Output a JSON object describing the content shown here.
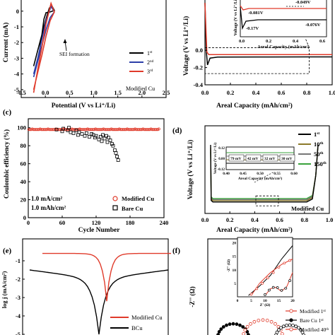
{
  "colors": {
    "black": "#000000",
    "red": "#e03a2a",
    "blue": "#2b3ea8",
    "green": "#39a33c",
    "olive": "#8c7a2a",
    "grey": "#777777"
  },
  "chart_data": [
    {
      "panel": "a",
      "type": "line",
      "panel_label": "",
      "xlabel": "Potential (V vs Li⁺/Li)",
      "ylabel": "Current (mA)",
      "xlim": [
        -0.5,
        3.0
      ],
      "xticks": [
        "-0.5",
        "0.0",
        "0.5",
        "1.0",
        "1.5",
        "2.0",
        "2.5"
      ],
      "yticks": [
        "0",
        "-1",
        "-2",
        "-3",
        "-4",
        "-5"
      ],
      "ylim": [
        -5.5,
        0.8
      ],
      "annotation": "SEI formation",
      "footer": "Modified Cu",
      "legend_position": "lower-right",
      "series": [
        {
          "name": "1st",
          "name_base": "1",
          "name_sup": "st",
          "color": "black",
          "points": [
            [
              -0.05,
              -2.4
            ],
            [
              0.0,
              -1.5
            ],
            [
              0.05,
              -0.5
            ],
            [
              0.1,
              -0.1
            ],
            [
              0.2,
              -0.05
            ],
            [
              0.3,
              0.05
            ],
            [
              0.25,
              0.3
            ],
            [
              0.18,
              0.2
            ],
            [
              0.1,
              -0.5
            ],
            [
              0.0,
              -1.5
            ],
            [
              -0.1,
              -2.5
            ],
            [
              -0.2,
              -3.5
            ]
          ]
        },
        {
          "name": "2nd",
          "name_base": "2",
          "name_sup": "nd",
          "color": "blue",
          "points": [
            [
              -0.2,
              -4.2
            ],
            [
              -0.1,
              -3.2
            ],
            [
              0.0,
              -2.2
            ],
            [
              0.1,
              -1.2
            ],
            [
              0.2,
              -0.4
            ],
            [
              0.3,
              -0.05
            ],
            [
              0.22,
              0.3
            ],
            [
              0.1,
              -0.6
            ],
            [
              0.0,
              -1.8
            ],
            [
              -0.1,
              -3.0
            ],
            [
              -0.2,
              -4.0
            ]
          ]
        },
        {
          "name": "3rd",
          "name_base": "3",
          "name_sup": "rd",
          "color": "red",
          "points": [
            [
              -0.2,
              -5.0
            ],
            [
              -0.1,
              -3.9
            ],
            [
              0.0,
              -2.8
            ],
            [
              0.1,
              -1.6
            ],
            [
              0.2,
              -0.6
            ],
            [
              0.3,
              -0.05
            ],
            [
              0.22,
              0.5
            ],
            [
              0.1,
              -0.8
            ],
            [
              0.0,
              -2.3
            ],
            [
              -0.1,
              -3.7
            ],
            [
              -0.2,
              -5.2
            ]
          ]
        }
      ]
    },
    {
      "panel": "b",
      "type": "line",
      "xlabel": "Areal Capacity (mAh/cm²)",
      "ylabel": "Voltage (V vs Li⁺/Li)",
      "xlim": [
        0.0,
        1.0
      ],
      "xticks": [
        "0.0",
        "0.2",
        "0.4",
        "0.6",
        "0.8",
        "1.0"
      ],
      "ylim": [
        -0.4,
        0.6
      ],
      "yticks": [
        "0.0",
        "-0.2",
        "-0.4"
      ],
      "series": [
        {
          "name": "",
          "color": "black",
          "points": [
            [
              0.0,
              0.55
            ],
            [
              0.01,
              0.0
            ],
            [
              0.02,
              -0.17
            ],
            [
              0.04,
              -0.09
            ],
            [
              0.1,
              -0.078
            ],
            [
              0.4,
              -0.077
            ],
            [
              0.8,
              -0.076
            ],
            [
              1.0,
              -0.076
            ]
          ]
        },
        {
          "name": "",
          "color": "red",
          "points": [
            [
              0.0,
              0.55
            ],
            [
              0.015,
              -0.02
            ],
            [
              0.03,
              -0.05
            ],
            [
              0.1,
              -0.05
            ],
            [
              0.4,
              -0.05
            ],
            [
              0.8,
              -0.049
            ],
            [
              1.0,
              -0.049
            ]
          ]
        }
      ],
      "inset": {
        "xlabel": "Areal Capacity (mAh/cm²)",
        "ylabel": "Voltage (V vs Li⁺/Li)",
        "xticks": [
          "0.0",
          "0.2",
          "0.4",
          "0.6"
        ],
        "annotations": [
          "-0.049V",
          "-0.081V",
          "-0.17V",
          "-0.076V"
        ]
      }
    },
    {
      "panel": "c",
      "type": "scatter",
      "panel_label": "(c)",
      "xlabel": "Cycle Number",
      "ylabel": "Coulombic efficiency (%)",
      "xlim": [
        0,
        240
      ],
      "xticks": [
        "0",
        "60",
        "120",
        "180",
        "240"
      ],
      "ylim": [
        0,
        110
      ],
      "yticks": [
        "0",
        "20",
        "40",
        "60",
        "80",
        "100"
      ],
      "annotations": [
        "1.0 mA/cm²",
        "1.0 mAh/cm²"
      ],
      "legend_position": "lower-right",
      "series": [
        {
          "name": "Modified Cu",
          "color": "red",
          "marker": "circle",
          "value": 98,
          "x_range": [
            1,
            232
          ]
        },
        {
          "name": "Bare Cu",
          "color": "black",
          "marker": "square",
          "points": [
            [
              50,
              98
            ],
            [
              60,
              96
            ],
            [
              62,
              99
            ],
            [
              70,
              97
            ],
            [
              72,
              100
            ],
            [
              75,
              95
            ],
            [
              80,
              94
            ],
            [
              85,
              97
            ],
            [
              88,
              92
            ],
            [
              90,
              95
            ],
            [
              95,
              93
            ],
            [
              100,
              91
            ],
            [
              103,
              94
            ],
            [
              108,
              90
            ],
            [
              112,
              93
            ],
            [
              115,
              92
            ],
            [
              118,
              89
            ],
            [
              120,
              91
            ],
            [
              125,
              87
            ],
            [
              128,
              90
            ],
            [
              130,
              85
            ],
            [
              132,
              92
            ],
            [
              135,
              88
            ],
            [
              138,
              91
            ],
            [
              140,
              84
            ],
            [
              142,
              89
            ],
            [
              145,
              86
            ],
            [
              148,
              82
            ],
            [
              150,
              80
            ],
            [
              153,
              75
            ],
            [
              155,
              72
            ],
            [
              157,
              68
            ],
            [
              159,
              64
            ]
          ]
        }
      ]
    },
    {
      "panel": "d",
      "type": "line",
      "panel_label": "(d)",
      "xlabel": "Areal Capacity (mAh/cm²)",
      "ylabel": "Voltage (V vs Li⁺/Li)",
      "xlim": [
        -0.05,
        1.05
      ],
      "xticks": [
        "0.0",
        "0.2",
        "0.4",
        "0.6",
        "0.8",
        "1.0"
      ],
      "footer": "Modified Cu",
      "series": [
        {
          "name": "1st",
          "name_base": "1",
          "name_sup": "st",
          "color": "black",
          "plateau": 0.0
        },
        {
          "name": "10th",
          "name_base": "10",
          "name_sup": "th",
          "color": "olive",
          "plateau": 0.018
        },
        {
          "name": "50th",
          "name_base": "50",
          "name_sup": "th",
          "color": "grey",
          "plateau": 0.032
        },
        {
          "name": "150th",
          "name_base": "150",
          "name_sup": "th",
          "color": "green",
          "plateau": 0.046
        }
      ],
      "inset": {
        "xlabel": "Areal Capacity (mAh/cm²)",
        "ylabel": "Voltage (V vs Li⁺/Li)",
        "xticks": [
          "0.40",
          "0.45",
          "0.50",
          "0.55",
          "0.60"
        ],
        "yticks": [
          "0.12",
          "0.00",
          "-0.12"
        ],
        "labels": [
          "79 mV",
          "42 mV",
          "32 mV",
          "30 mV"
        ]
      }
    },
    {
      "panel": "e",
      "type": "line",
      "panel_label": "(e)",
      "ylabel": "log j (mA/cm²)",
      "yticks": [
        "-1",
        "-2",
        "-3",
        "-4",
        "-5"
      ],
      "legend_position": "lower-right",
      "series": [
        {
          "name": "Modified Cu",
          "color": "red"
        },
        {
          "name": "BCu",
          "color": "black"
        }
      ]
    },
    {
      "panel": "f",
      "type": "scatter",
      "panel_label": "(f)",
      "ylabel": "-Z'' (Ω)",
      "legend_position": "lower-right",
      "series": [
        {
          "name": "Modified 1st",
          "name_base": "Modified 1",
          "name_sup": "st",
          "color": "red"
        },
        {
          "name": "Bare Cu 1st",
          "name_base": "Bare Cu 1",
          "name_sup": "st",
          "color": "black"
        },
        {
          "name": "Modified 40th",
          "name_base": "Modified 40",
          "name_sup": "th",
          "color": "red"
        }
      ],
      "inset": {
        "xlabel": "Z' (Ω)",
        "ylabel": "-Z'' (Ω)",
        "xticks": [
          "0",
          "5",
          "10",
          "15",
          "20"
        ],
        "yticks": [
          "5",
          "10",
          "15",
          "20"
        ]
      }
    }
  ]
}
